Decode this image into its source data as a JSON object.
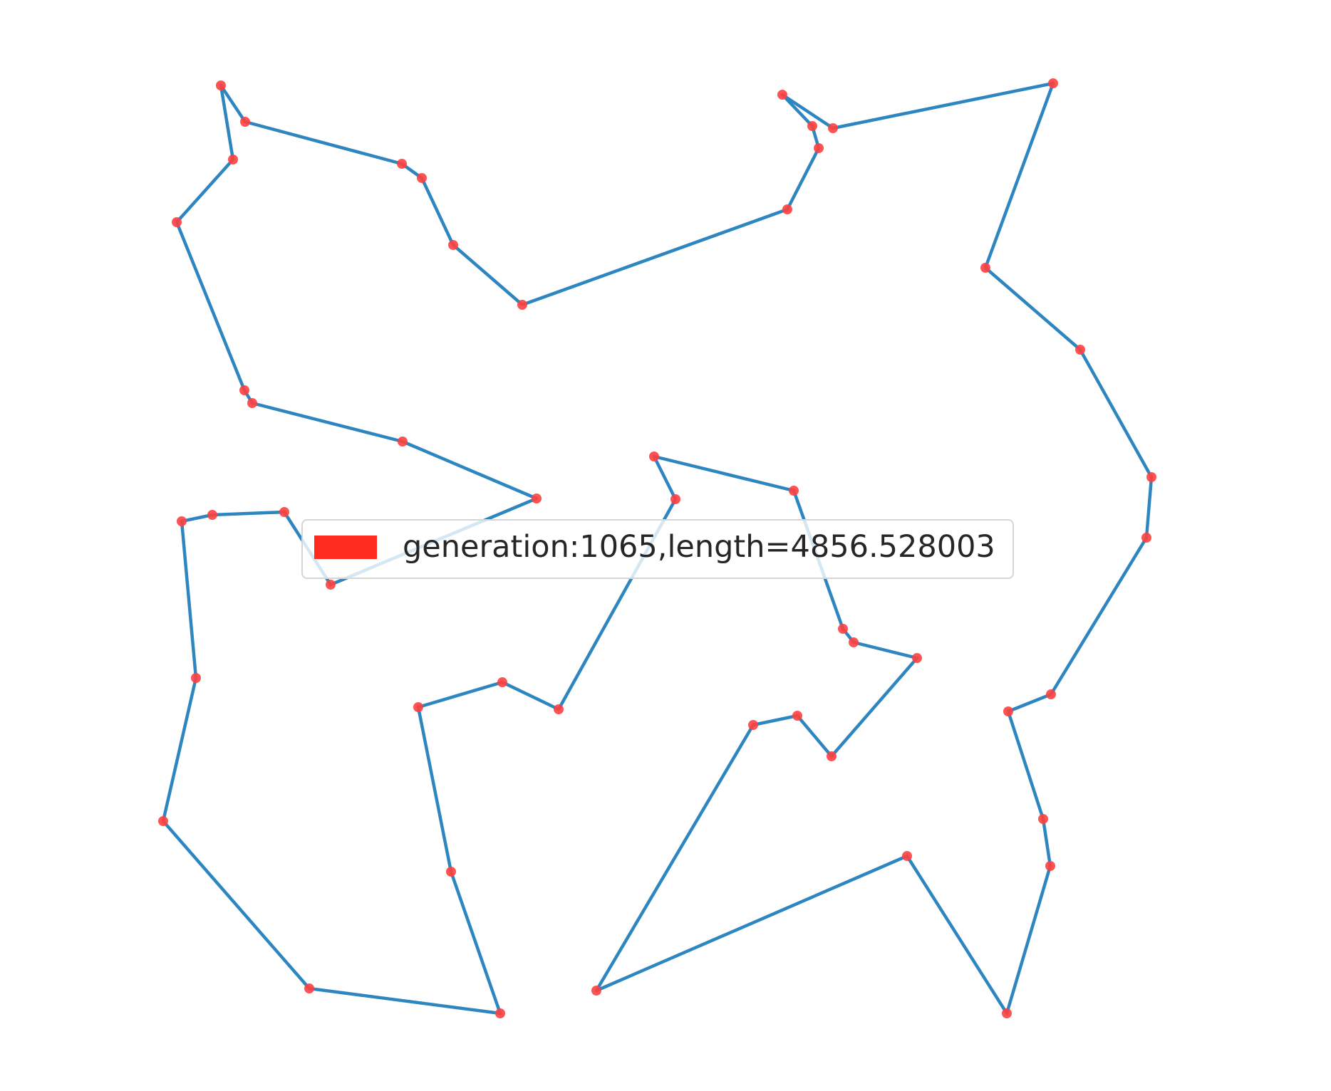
{
  "chart_data": {
    "type": "line",
    "title": "",
    "xlabel": "",
    "ylabel": "",
    "axes_visible": false,
    "grid": false,
    "closed_path": true,
    "legend": {
      "placement": "center",
      "entries": [
        {
          "label": "generation:1065,length=4856.528003",
          "color": "#ff2b1f"
        }
      ]
    },
    "series": [
      {
        "route_color": "#2e86c1",
        "marker_color": "#ff4040",
        "points": [
          [
            310,
            120
          ],
          [
            344,
            171
          ],
          [
            564,
            230
          ],
          [
            592,
            250
          ],
          [
            636,
            344
          ],
          [
            733,
            428
          ],
          [
            1105,
            294
          ],
          [
            1149,
            208
          ],
          [
            1140,
            177
          ],
          [
            1098,
            133
          ],
          [
            1169,
            180
          ],
          [
            1478,
            117
          ],
          [
            1383,
            376
          ],
          [
            1516,
            491
          ],
          [
            1616,
            670
          ],
          [
            1609,
            755
          ],
          [
            1475,
            975
          ],
          [
            1415,
            999
          ],
          [
            1464,
            1150
          ],
          [
            1474,
            1216
          ],
          [
            1413,
            1423
          ],
          [
            1273,
            1202
          ],
          [
            837,
            1391
          ],
          [
            1057,
            1018
          ],
          [
            1119,
            1005
          ],
          [
            1167,
            1062
          ],
          [
            1287,
            924
          ],
          [
            1198,
            902
          ],
          [
            1183,
            883
          ],
          [
            1114,
            689
          ],
          [
            918,
            641
          ],
          [
            948,
            701
          ],
          [
            784,
            996
          ],
          [
            705,
            958
          ],
          [
            587,
            993
          ],
          [
            633,
            1224
          ],
          [
            702,
            1423
          ],
          [
            434,
            1388
          ],
          [
            229,
            1153
          ],
          [
            275,
            952
          ],
          [
            255,
            732
          ],
          [
            298,
            723
          ],
          [
            399,
            719
          ],
          [
            464,
            821
          ],
          [
            753,
            700
          ],
          [
            565,
            620
          ],
          [
            354,
            566
          ],
          [
            343,
            548
          ],
          [
            248,
            312
          ],
          [
            327,
            224
          ]
        ]
      }
    ]
  }
}
